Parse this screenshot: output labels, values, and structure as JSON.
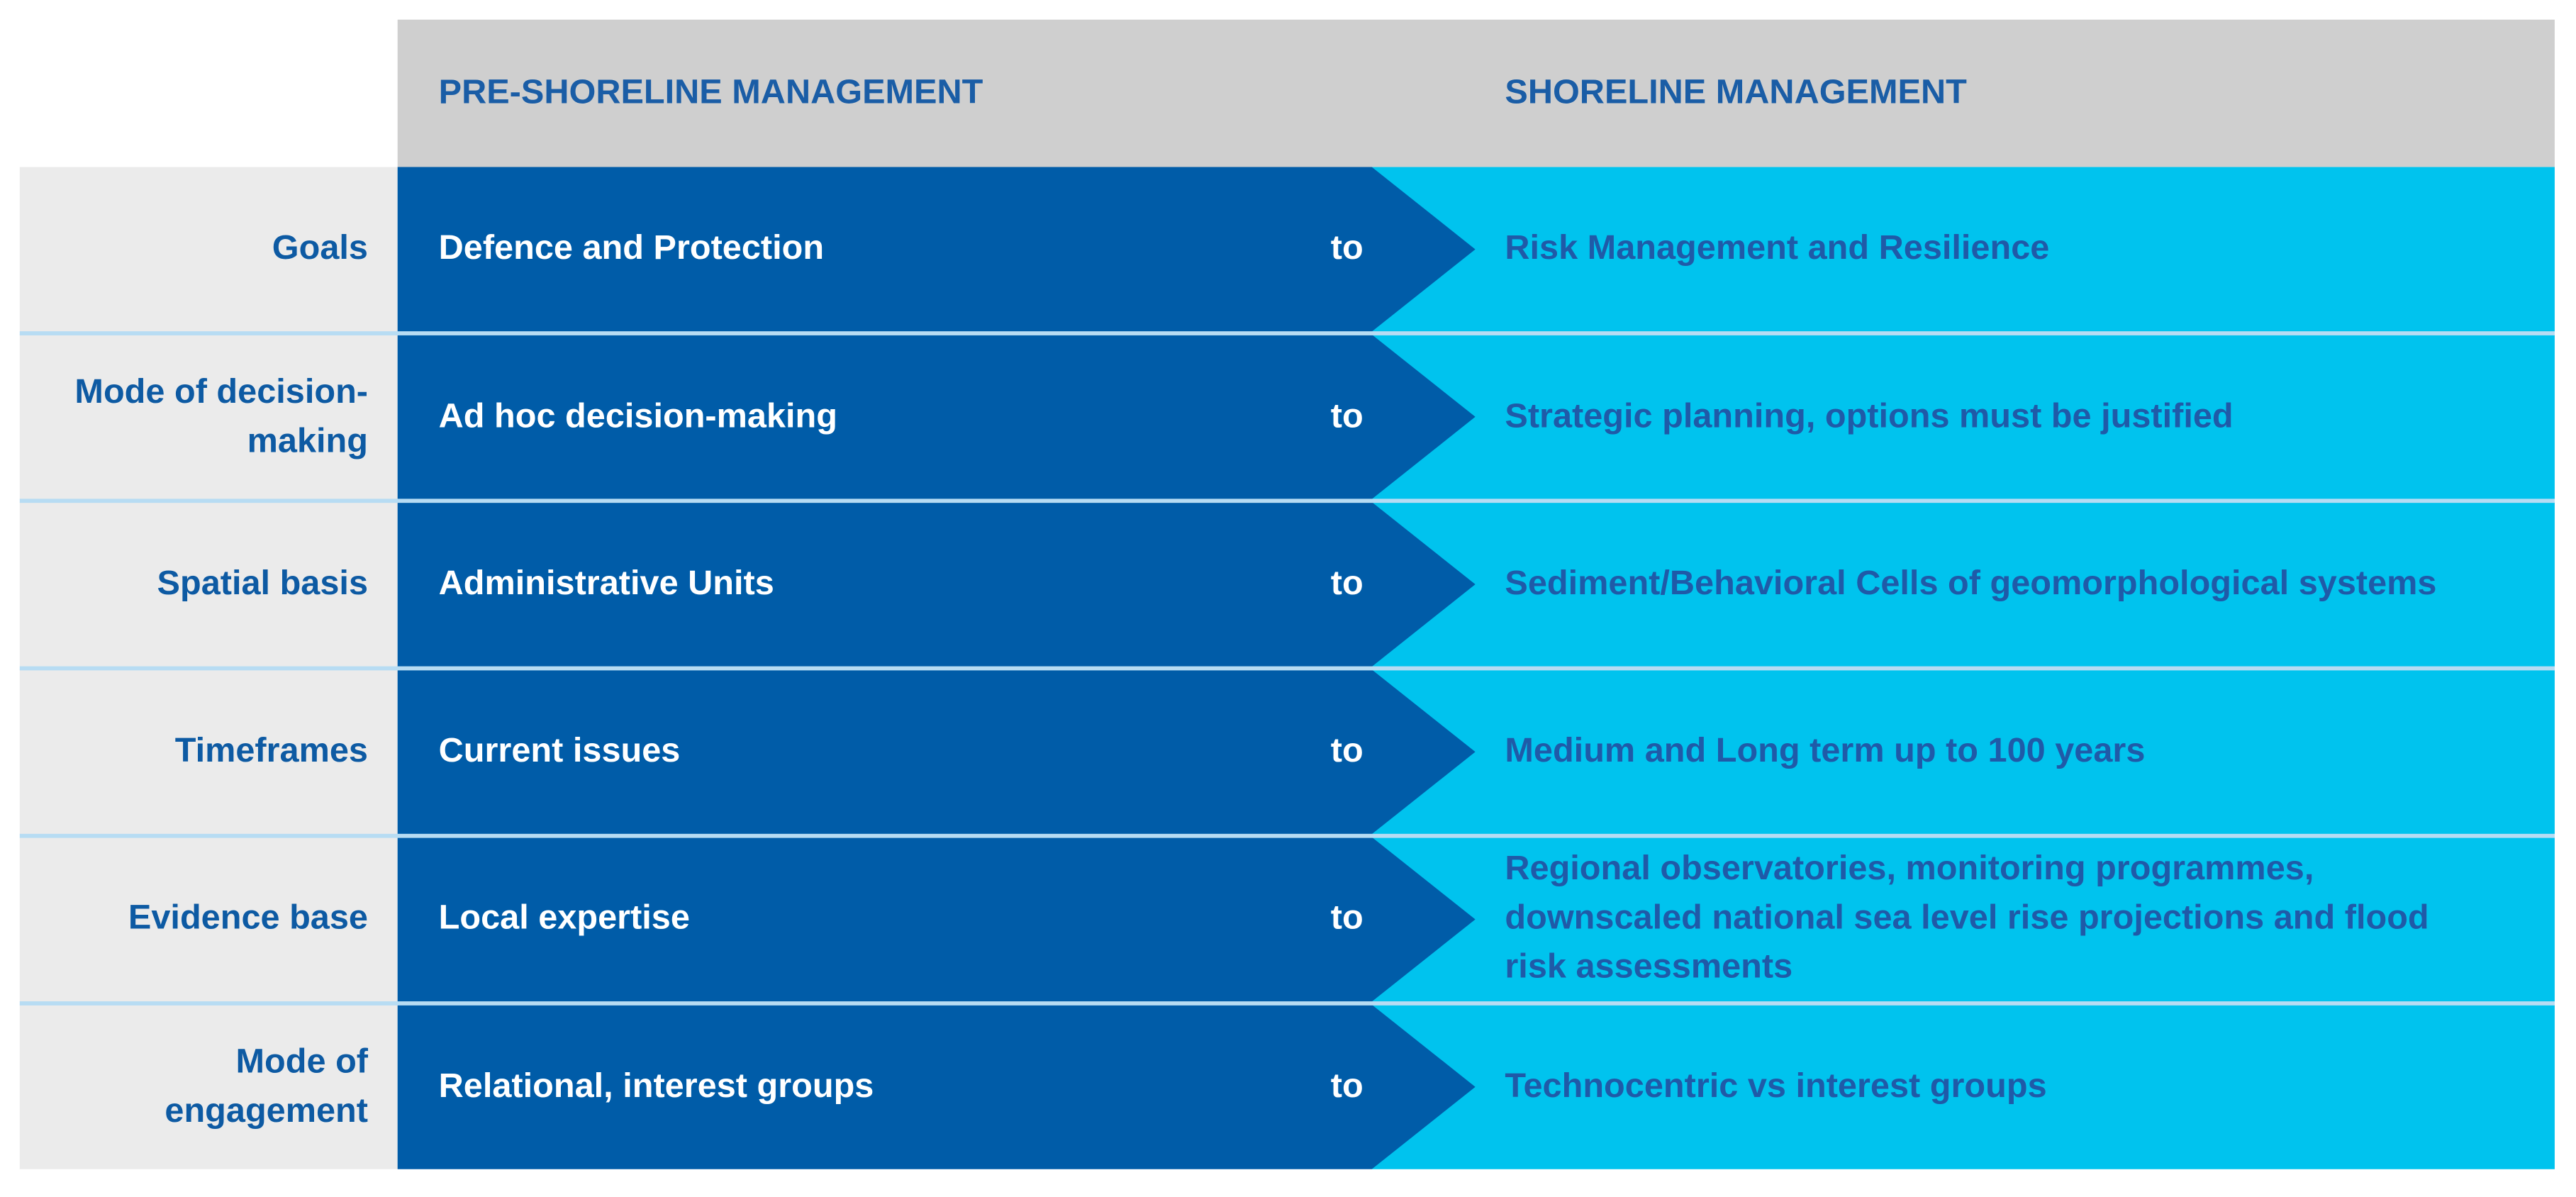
{
  "header": {
    "columns": [
      "PRE-SHORELINE MANAGEMENT",
      "SHORELINE MANAGEMENT"
    ]
  },
  "rows": [
    {
      "label": "Goals",
      "from": "Defence and Protection",
      "connector": "to",
      "to": "Risk Management and Resilience"
    },
    {
      "label": "Mode of decision-making",
      "from": "Ad hoc decision-making",
      "connector": "to",
      "to": "Strategic planning, options must be justified"
    },
    {
      "label": "Spatial basis",
      "from": "Administrative Units",
      "connector": "to",
      "to": "Sediment/Behavioral Cells of geomorphological systems"
    },
    {
      "label": "Timeframes",
      "from": "Current issues",
      "connector": "to",
      "to": "Medium and Long term up to 100 years"
    },
    {
      "label": "Evidence base",
      "from": "Local expertise",
      "connector": "to",
      "to": "Regional observatories, monitoring programmes, downscaled national sea level rise projections and flood risk assessments"
    },
    {
      "label": "Mode of engagement",
      "from": "Relational, interest groups",
      "connector": "to",
      "to": "Technocentric vs interest groups"
    }
  ]
}
